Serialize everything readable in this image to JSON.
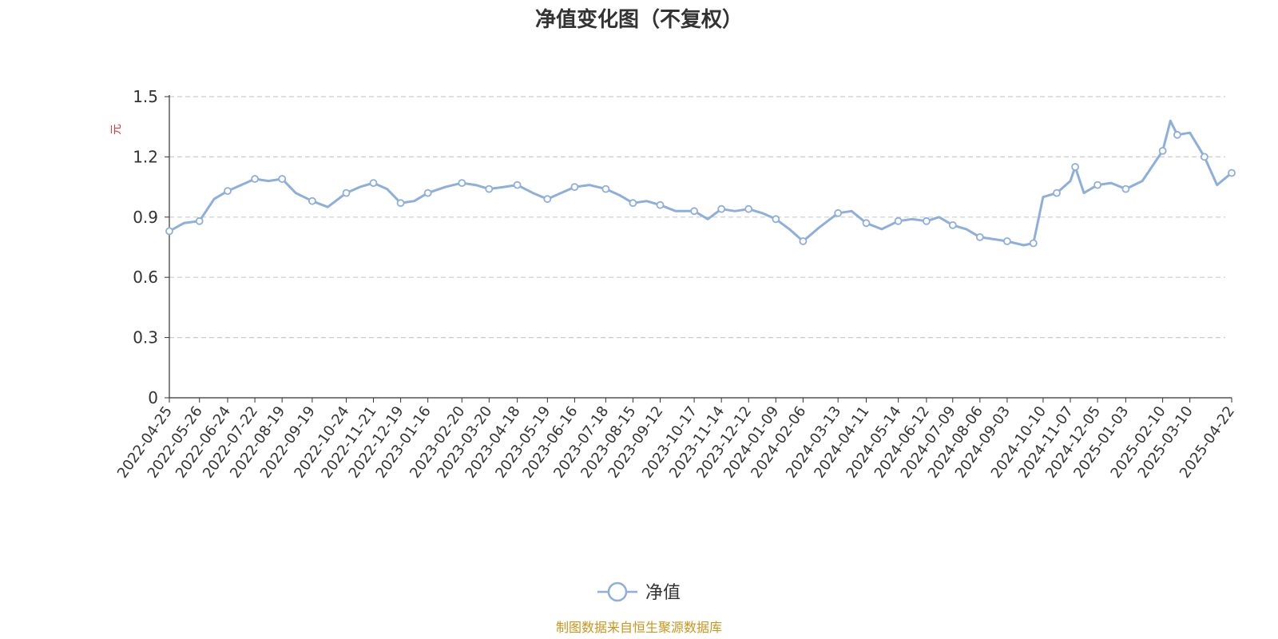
{
  "chart_data": {
    "type": "line",
    "title": "净值变化图（不复权）",
    "ylabel": "元",
    "ylim": [
      0,
      1.5
    ],
    "yticks": [
      "0",
      "0.3",
      "0.6",
      "0.9",
      "1.2",
      "1.5"
    ],
    "grid": true,
    "legend_position": "bottom-center",
    "x_tick_labels": [
      "2022-04-25",
      "2022-05-26",
      "2022-06-24",
      "2022-07-22",
      "2022-08-19",
      "2022-09-19",
      "2022-10-24",
      "2022-11-21",
      "2022-12-19",
      "2023-01-16",
      "2023-02-20",
      "2023-03-20",
      "2023-04-18",
      "2023-05-19",
      "2023-06-16",
      "2023-07-18",
      "2023-08-15",
      "2023-09-12",
      "2023-10-17",
      "2023-11-14",
      "2023-12-12",
      "2024-01-09",
      "2024-02-06",
      "2024-03-13",
      "2024-04-11",
      "2024-05-14",
      "2024-06-12",
      "2024-07-09",
      "2024-08-06",
      "2024-09-03",
      "2024-10-10",
      "2024-11-07",
      "2024-12-05",
      "2025-01-03",
      "2025-02-10",
      "2025-03-10",
      "2025-04-22"
    ],
    "series": [
      {
        "name": "净值",
        "color": "#8eaedb",
        "x": [
          "2022-04-25",
          "2022-05-10",
          "2022-05-26",
          "2022-06-10",
          "2022-06-24",
          "2022-07-08",
          "2022-07-22",
          "2022-08-05",
          "2022-08-19",
          "2022-09-02",
          "2022-09-19",
          "2022-10-05",
          "2022-10-24",
          "2022-11-07",
          "2022-11-21",
          "2022-12-05",
          "2022-12-19",
          "2023-01-02",
          "2023-01-16",
          "2023-02-03",
          "2023-02-20",
          "2023-03-06",
          "2023-03-20",
          "2023-04-04",
          "2023-04-18",
          "2023-05-04",
          "2023-05-19",
          "2023-06-02",
          "2023-06-16",
          "2023-07-01",
          "2023-07-18",
          "2023-08-01",
          "2023-08-15",
          "2023-08-29",
          "2023-09-12",
          "2023-09-28",
          "2023-10-17",
          "2023-10-31",
          "2023-11-14",
          "2023-11-28",
          "2023-12-12",
          "2023-12-26",
          "2024-01-09",
          "2024-01-23",
          "2024-02-06",
          "2024-02-23",
          "2024-03-13",
          "2024-03-27",
          "2024-04-11",
          "2024-04-27",
          "2024-05-14",
          "2024-05-28",
          "2024-06-12",
          "2024-06-25",
          "2024-07-09",
          "2024-07-23",
          "2024-08-06",
          "2024-08-20",
          "2024-09-03",
          "2024-09-20",
          "2024-09-30",
          "2024-10-10",
          "2024-10-24",
          "2024-11-07",
          "2024-11-12",
          "2024-11-21",
          "2024-12-05",
          "2024-12-19",
          "2025-01-03",
          "2025-01-20",
          "2025-02-10",
          "2025-02-18",
          "2025-02-25",
          "2025-03-10",
          "2025-03-25",
          "2025-04-07",
          "2025-04-22"
        ],
        "values": [
          0.83,
          0.87,
          0.88,
          0.99,
          1.03,
          1.06,
          1.09,
          1.08,
          1.09,
          1.02,
          0.98,
          0.95,
          1.02,
          1.05,
          1.07,
          1.04,
          0.97,
          0.98,
          1.02,
          1.05,
          1.07,
          1.06,
          1.04,
          1.05,
          1.06,
          1.02,
          0.99,
          1.02,
          1.05,
          1.06,
          1.04,
          1.01,
          0.97,
          0.98,
          0.96,
          0.93,
          0.93,
          0.89,
          0.94,
          0.93,
          0.94,
          0.92,
          0.89,
          0.84,
          0.78,
          0.85,
          0.92,
          0.93,
          0.87,
          0.84,
          0.88,
          0.89,
          0.88,
          0.9,
          0.86,
          0.84,
          0.8,
          0.79,
          0.78,
          0.76,
          0.77,
          1.0,
          1.02,
          1.08,
          1.15,
          1.02,
          1.06,
          1.07,
          1.04,
          1.08,
          1.23,
          1.38,
          1.31,
          1.32,
          1.2,
          1.06,
          1.12
        ]
      }
    ]
  },
  "footer": {
    "source": "制图数据来自恒生聚源数据库"
  }
}
